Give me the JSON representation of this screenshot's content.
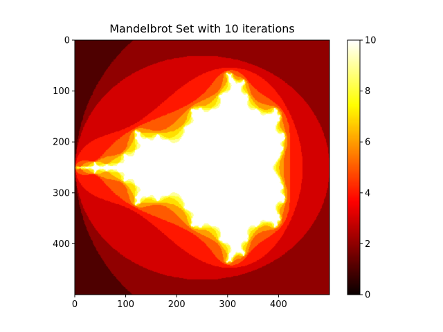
{
  "chart_data": {
    "type": "heatmap",
    "title": "Mandelbrot Set with 10 iterations",
    "max_iterations": 10,
    "grid_size": 500,
    "real_range": [
      -2.0,
      1.0
    ],
    "imag_range": [
      -1.5,
      1.5
    ],
    "colormap": "hot",
    "x_ticks": [
      0,
      100,
      200,
      300,
      400
    ],
    "y_ticks": [
      0,
      100,
      200,
      300,
      400
    ],
    "xlim": [
      0,
      500
    ],
    "ylim": [
      500,
      0
    ],
    "colorbar": {
      "range": [
        0,
        10
      ],
      "ticks": [
        0,
        2,
        4,
        6,
        8,
        10
      ]
    }
  }
}
